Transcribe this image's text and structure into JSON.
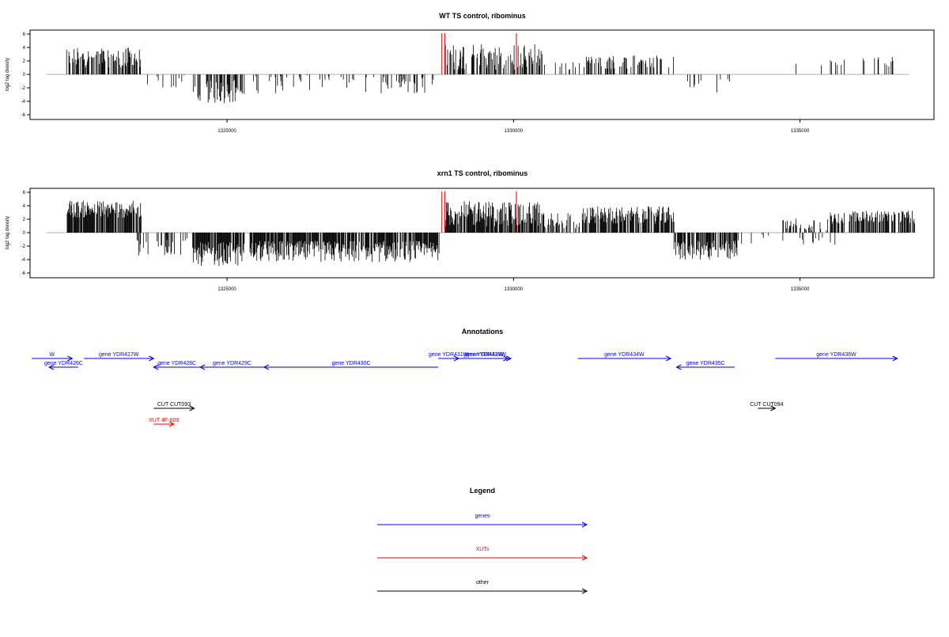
{
  "panels": [
    {
      "title": "WT TS control, ribominus",
      "ylabel": "log2 tag density",
      "yticks": [
        "-6",
        "-4",
        "-2",
        "0",
        "2",
        "4",
        "6"
      ],
      "xticks": [
        "1325000",
        "1330000",
        "1335000"
      ],
      "highlight_color": "#cc0000"
    },
    {
      "title": "xrn1 TS control, ribominus",
      "ylabel": "log2 tag density",
      "yticks": [
        "-6",
        "-4",
        "-2",
        "0",
        "2",
        "4",
        "6"
      ],
      "xticks": [
        "1325000",
        "1330000",
        "1335000"
      ],
      "highlight_color": "#cc0000"
    }
  ],
  "annotations": {
    "title": "Annotations",
    "features": [
      {
        "label": "W",
        "type": "gene",
        "strand": "+",
        "start": 1321800,
        "end": 1322500
      },
      {
        "label": "gene YDR426C",
        "type": "gene",
        "strand": "-",
        "start": 1322100,
        "end": 1322600
      },
      {
        "label": "gene YDR427W",
        "type": "gene",
        "strand": "+",
        "start": 1322700,
        "end": 1323900
      },
      {
        "label": "gene YDR428C",
        "type": "gene",
        "strand": "-",
        "start": 1323900,
        "end": 1324700
      },
      {
        "label": "gene YDR429C",
        "type": "gene",
        "strand": "-",
        "start": 1324700,
        "end": 1325800
      },
      {
        "label": "gene YDR430C",
        "type": "gene",
        "strand": "-",
        "start": 1325800,
        "end": 1328800
      },
      {
        "label": "gene YDR431W",
        "type": "gene",
        "strand": "+",
        "start": 1328800,
        "end": 1329150
      },
      {
        "label": "gene YDR432W",
        "type": "gene",
        "strand": "+",
        "start": 1329150,
        "end": 1330000
      },
      {
        "label": "gene YDR433W",
        "type": "gene",
        "strand": "+",
        "start": 1329200,
        "end": 1330050
      },
      {
        "label": "gene YDR434W",
        "type": "gene",
        "strand": "+",
        "start": 1331200,
        "end": 1332800
      },
      {
        "label": "gene YDR435C",
        "type": "gene",
        "strand": "-",
        "start": 1332900,
        "end": 1333900
      },
      {
        "label": "gene YDR436W",
        "type": "gene",
        "strand": "+",
        "start": 1334600,
        "end": 1336700
      },
      {
        "label": "CUT CUT093",
        "type": "other",
        "strand": "+",
        "start": 1323900,
        "end": 1324600
      },
      {
        "label": "CUT CUT094",
        "type": "other",
        "strand": "+",
        "start": 1334300,
        "end": 1334600
      },
      {
        "label": "XUT 4F-609",
        "type": "xut",
        "strand": "+",
        "start": 1323900,
        "end": 1324250
      }
    ]
  },
  "legend": {
    "title": "Legend",
    "items": [
      {
        "label": "genes",
        "color": "#0000ee"
      },
      {
        "label": "XUTs",
        "color": "#ee0000"
      },
      {
        "label": "other",
        "color": "#000000"
      }
    ]
  },
  "colors": {
    "bars": "#000000",
    "gene": "#0000ee",
    "xut": "#ee0000",
    "other": "#000000",
    "baseline": "#999999"
  },
  "chart_data": [
    {
      "type": "bar",
      "title": "WT TS control, ribominus",
      "ylabel": "log2 tag density",
      "xlim": [
        1321700,
        1337200
      ],
      "ylim": [
        -7,
        7
      ],
      "highlighted_x": [
        1328750,
        1328800,
        1330050
      ],
      "regions": [
        {
          "start": 1321850,
          "end": 1321900,
          "mean": -2.0,
          "spread": 0.2,
          "density": 0.05
        },
        {
          "start": 1322200,
          "end": 1323500,
          "mean": 2.5,
          "spread": 1.5,
          "density": 0.6
        },
        {
          "start": 1323600,
          "end": 1324300,
          "mean": -1.3,
          "spread": 1.2,
          "density": 0.15
        },
        {
          "start": 1324400,
          "end": 1325300,
          "mean": -2.5,
          "spread": 1.8,
          "density": 0.5
        },
        {
          "start": 1325400,
          "end": 1328700,
          "mean": -1.3,
          "spread": 1.5,
          "density": 0.18
        },
        {
          "start": 1326800,
          "end": 1326850,
          "mean": 3.0,
          "spread": 0.1,
          "density": 0.05
        },
        {
          "start": 1328800,
          "end": 1330500,
          "mean": 2.6,
          "spread": 2.0,
          "density": 0.55
        },
        {
          "start": 1330500,
          "end": 1331200,
          "mean": 1.6,
          "spread": 1.0,
          "density": 0.12
        },
        {
          "start": 1331200,
          "end": 1332800,
          "mean": 1.8,
          "spread": 1.0,
          "density": 0.35
        },
        {
          "start": 1332900,
          "end": 1333900,
          "mean": -1.4,
          "spread": 1.3,
          "density": 0.15
        },
        {
          "start": 1334800,
          "end": 1335000,
          "mean": 1.3,
          "spread": 0.3,
          "density": 0.04
        },
        {
          "start": 1335300,
          "end": 1336200,
          "mean": 1.8,
          "spread": 0.6,
          "density": 0.08
        },
        {
          "start": 1336300,
          "end": 1336800,
          "mean": 2.0,
          "spread": 0.8,
          "density": 0.12
        }
      ]
    },
    {
      "type": "bar",
      "title": "xrn1 TS control, ribominus",
      "ylabel": "log2 tag density",
      "xlim": [
        1321700,
        1337200
      ],
      "ylim": [
        -7,
        7
      ],
      "highlighted_x": [
        1328750,
        1328800,
        1330050
      ],
      "regions": [
        {
          "start": 1322200,
          "end": 1323500,
          "mean": 3.5,
          "spread": 1.3,
          "density": 0.85
        },
        {
          "start": 1323400,
          "end": 1324300,
          "mean": -2.2,
          "spread": 1.4,
          "density": 0.3
        },
        {
          "start": 1324400,
          "end": 1325300,
          "mean": -3.2,
          "spread": 1.8,
          "density": 0.9
        },
        {
          "start": 1325400,
          "end": 1328700,
          "mean": -2.8,
          "spread": 1.6,
          "density": 0.85
        },
        {
          "start": 1328800,
          "end": 1330500,
          "mean": 2.8,
          "spread": 1.9,
          "density": 0.8
        },
        {
          "start": 1330500,
          "end": 1331200,
          "mean": 1.8,
          "spread": 1.2,
          "density": 0.4
        },
        {
          "start": 1331200,
          "end": 1332800,
          "mean": 2.6,
          "spread": 1.3,
          "density": 0.8
        },
        {
          "start": 1332800,
          "end": 1333900,
          "mean": -2.6,
          "spread": 1.5,
          "density": 0.75
        },
        {
          "start": 1333900,
          "end": 1334700,
          "mean": -1.0,
          "spread": 0.8,
          "density": 0.08
        },
        {
          "start": 1334700,
          "end": 1335500,
          "mean": 1.2,
          "spread": 0.9,
          "density": 0.25
        },
        {
          "start": 1335000,
          "end": 1335700,
          "mean": -1.0,
          "spread": 0.8,
          "density": 0.15
        },
        {
          "start": 1335500,
          "end": 1337000,
          "mean": 2.3,
          "spread": 1.0,
          "density": 0.6
        }
      ]
    }
  ]
}
